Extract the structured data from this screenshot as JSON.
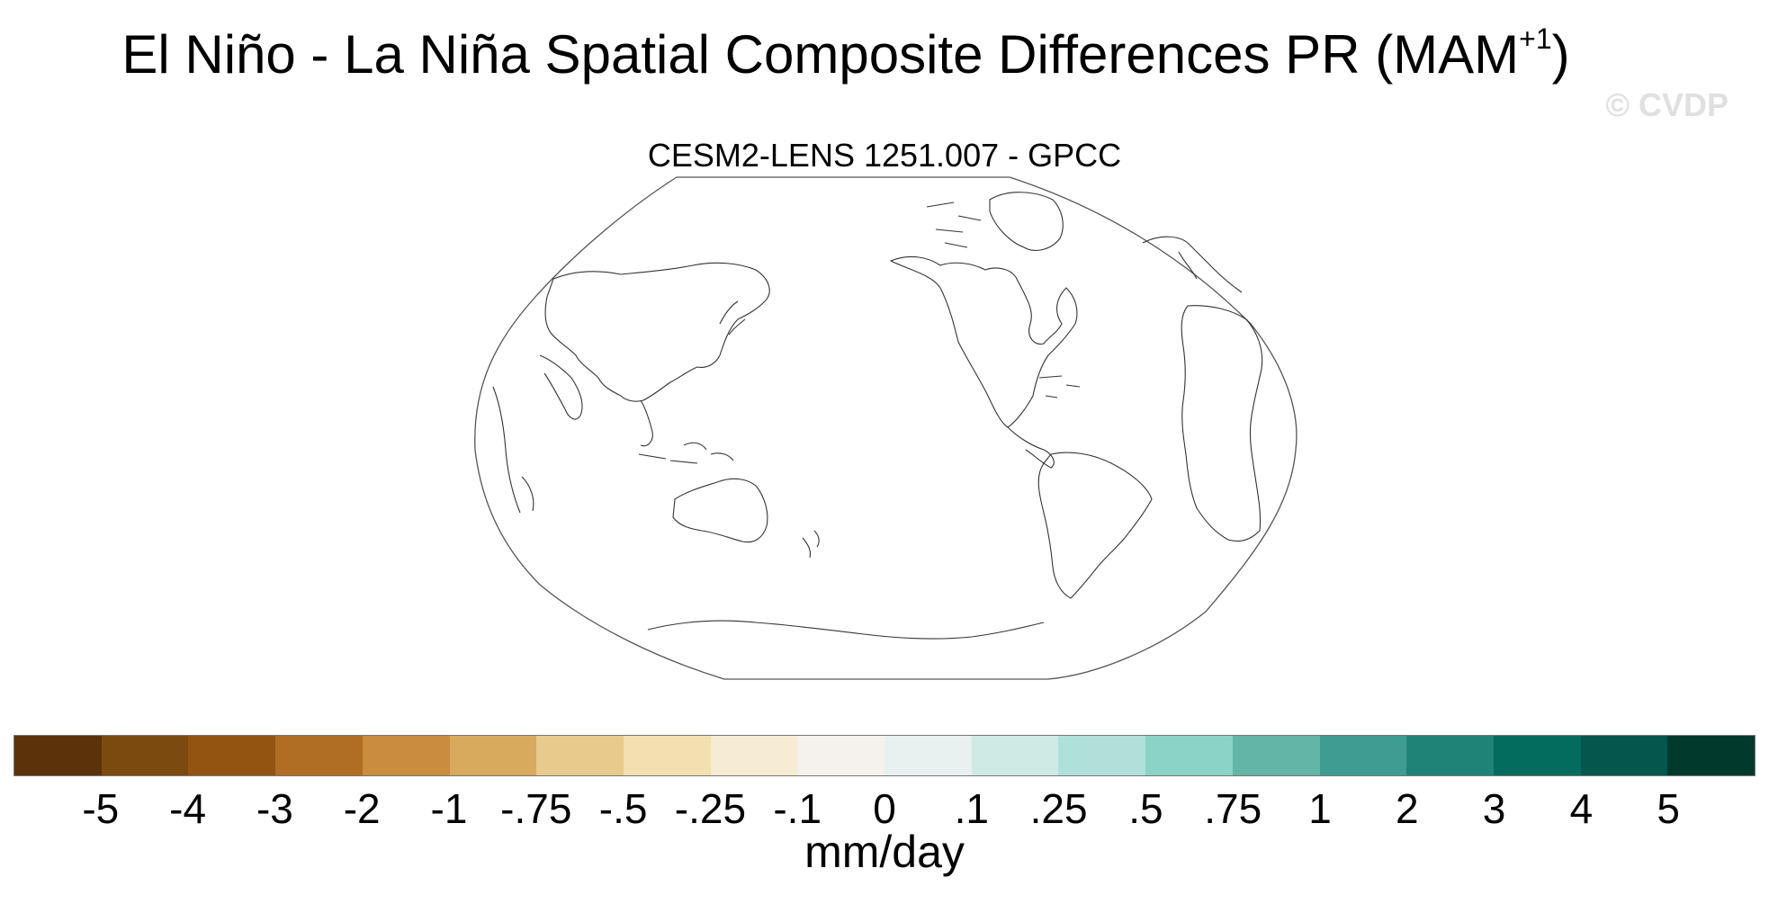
{
  "title": {
    "main": "El Niño - La Niña Spatial Composite Differences PR (MAM",
    "superscript": "+1",
    "close": ")"
  },
  "watermark": "© CVDP",
  "map": {
    "subtitle": "CESM2-LENS 1251.007 - GPCC",
    "projection": "robinson",
    "center_longitude": 180
  },
  "colorbar": {
    "unit": "mm/day",
    "labels": [
      "-5",
      "-4",
      "-3",
      "-2",
      "-1",
      "-.75",
      "-.5",
      "-.25",
      "-.1",
      "0",
      ".1",
      ".25",
      ".5",
      ".75",
      "1",
      "2",
      "3",
      "4",
      "5"
    ],
    "colors": [
      "#5b3209",
      "#7b4a0e",
      "#935412",
      "#b06d24",
      "#c98d3d",
      "#d7aa5e",
      "#e7ca8c",
      "#f2e0b0",
      "#f6ebd3",
      "#f5f1ec",
      "#e8f1ef",
      "#cfeae5",
      "#b0e0d9",
      "#8ad3c6",
      "#63b5a8",
      "#3e9c92",
      "#208378",
      "#036c5f",
      "#04574c",
      "#01392d"
    ]
  }
}
